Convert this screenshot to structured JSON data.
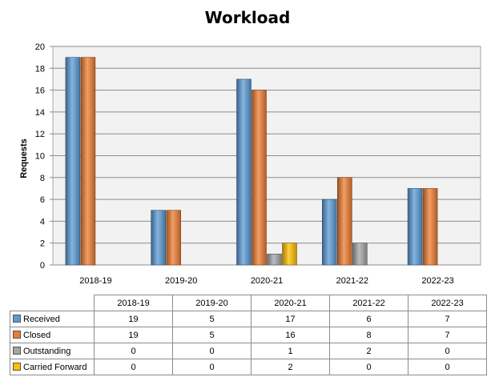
{
  "chart_data": {
    "type": "bar",
    "title": "Workload",
    "ylabel": "Requests",
    "xlabel": "",
    "ylim": [
      0,
      20
    ],
    "yticks": [
      0,
      2,
      4,
      6,
      8,
      10,
      12,
      14,
      16,
      18,
      20
    ],
    "grid": true,
    "legend": "data-table",
    "categories": [
      "2018-19",
      "2019-20",
      "2020-21",
      "2021-22",
      "2022-23"
    ],
    "series": [
      {
        "name": "Received",
        "color": "#5b9bd5",
        "values": [
          19,
          5,
          17,
          6,
          7
        ]
      },
      {
        "name": "Closed",
        "color": "#ed7d31",
        "values": [
          19,
          5,
          16,
          8,
          7
        ]
      },
      {
        "name": "Outstanding",
        "color": "#a5a5a5",
        "values": [
          0,
          0,
          1,
          2,
          0
        ]
      },
      {
        "name": "Carried Forward",
        "color": "#ffc000",
        "values": [
          0,
          0,
          2,
          0,
          0
        ]
      }
    ]
  }
}
